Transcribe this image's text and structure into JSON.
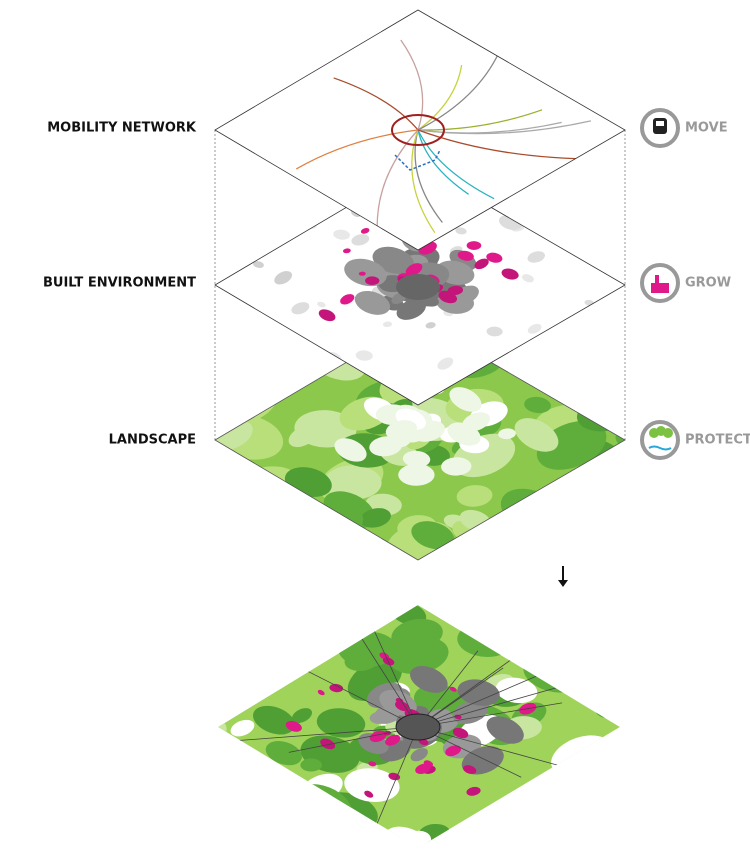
{
  "layers": [
    {
      "label": "MOBILITY NETWORK",
      "action": "MOVE"
    },
    {
      "label": "BUILT ENVIRONMENT",
      "action": "GROW"
    },
    {
      "label": "LANDSCAPE",
      "action": "PROTECT"
    }
  ]
}
